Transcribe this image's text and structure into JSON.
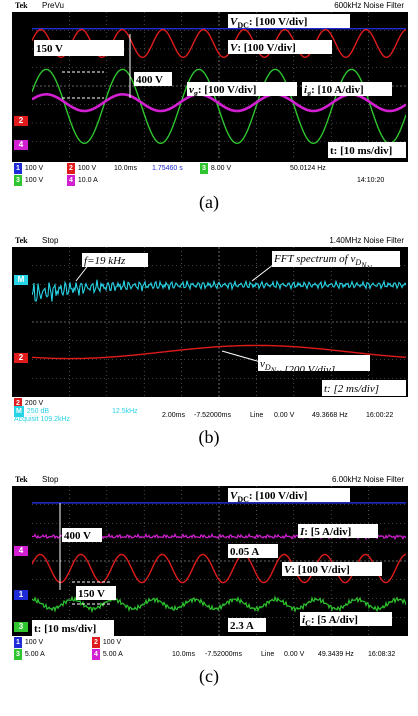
{
  "colors": {
    "ch1": "#1f2bd6",
    "ch2": "#e01b1b",
    "ch3": "#2ec52e",
    "ch4": "#d21fd2",
    "cyan": "#27d4e6",
    "grid": "#7a7a7a"
  },
  "panels": [
    {
      "caption": "(a)",
      "header": {
        "brand": "Tek",
        "state": "PreVu",
        "filter": "600kHz  Noise Filter"
      },
      "annotations": {
        "vdc": "V",
        "vdc_sub": "DC",
        "vdc_scale": ": [100 V/div]",
        "v": "V",
        "v_scale": ": [100 V/div]",
        "vg": "v",
        "vg_sub": "g",
        "vg_scale": ": [100 V/div]",
        "ig": "i",
        "ig_sub": "g",
        "ig_scale": ": [10 A/div]",
        "amp1": "150 V",
        "amp2": "400 V",
        "time": "t: [10 ms/div]"
      },
      "status": {
        "ch1": "100 V",
        "ch2": "100 V",
        "ch3": "100 V",
        "ch4": "10.0 A",
        "timebase": "10.0ms",
        "delay": "1.75460 s",
        "trig": "8.00 V",
        "freq": "50.0124 Hz",
        "clock": "14:10:20"
      },
      "chart_data": {
        "type": "line",
        "xlabel": "t",
        "x_unit": "ms/div",
        "series": [
          {
            "name": "V_DC",
            "level_div": 3.1,
            "shape": "dc"
          },
          {
            "name": "V",
            "offset_div": 2.3,
            "amp_div": 0.75,
            "period_ms": 11.2,
            "shape": "sine"
          },
          {
            "name": "v_g",
            "offset_div": -1.1,
            "amp_div": 2.0,
            "period_ms": 20,
            "shape": "sine"
          },
          {
            "name": "i_g",
            "offset_div": -0.9,
            "amp_div": 0.45,
            "period_ms": 20,
            "shape": "sine"
          }
        ],
        "amplitude_labels": [
          "150 V",
          "400 V"
        ]
      }
    },
    {
      "caption": "(b)",
      "header": {
        "brand": "Tek",
        "state": "Stop",
        "filter": "1.40MHz  Noise Filter"
      },
      "annotations": {
        "freq": "f",
        "freq_val": "=19 kHz",
        "fft": "FFT spectrum of v",
        "fft_sub": "D",
        "fft_sub2": "N",
        "fft_sub3": "N",
        "vd": "v",
        "vd_sub": "D",
        "vd_sub2": "N",
        "vd_sub3": "N",
        "vd_scale": " [200 V/div]",
        "time": "t: [2 ms/div]"
      },
      "status": {
        "ch2": "200 V",
        "math_a": "250 dB",
        "math_b": "12.5kHz",
        "extra": "Acquisit 109.2kHz",
        "timebase": "2.00ms",
        "delay": "-7.52000ms",
        "line": "Line",
        "trig": "0.00 V",
        "freq": "49.3668 Hz",
        "clock": "16:00:22"
      },
      "chart_data": {
        "type": "line",
        "xlabel": "t",
        "x_unit": "ms/div",
        "series": [
          {
            "name": "FFT spectrum of v_DN",
            "shape": "spectrum",
            "peak_khz": 19
          },
          {
            "name": "v_DN",
            "offset_div": -1.6,
            "amp_div": 0.35,
            "shape": "sine"
          }
        ]
      }
    },
    {
      "caption": "(c)",
      "header": {
        "brand": "Tek",
        "state": "Stop",
        "filter": "6.00kHz  Noise Filter"
      },
      "annotations": {
        "vdc": "V",
        "vdc_sub": "DC",
        "vdc_scale": ": [100 V/div]",
        "i": "I",
        "i_scale": ": [5 A/div]",
        "v": "V",
        "v_scale": ": [100 V/div]",
        "ic": "i",
        "ic_sub": "C",
        "ic_scale": ": [5 A/div]",
        "amp1": "400 V",
        "amp2": "150 V",
        "ripple_i": "0.05 A",
        "ripple_c": "2.3 A",
        "time": "t: [10 ms/div]"
      },
      "status": {
        "ch1": "100 V",
        "ch2": "100 V",
        "ch3": "5.00 A",
        "ch4": "5.00 A",
        "timebase": "10.0ms",
        "delay": "-7.52000ms",
        "line": "Line",
        "trig": "0.00 V",
        "freq": "49.3439 Hz",
        "clock": "16:08:32"
      },
      "chart_data": {
        "type": "line",
        "xlabel": "t",
        "x_unit": "ms/div",
        "series": [
          {
            "name": "V_DC",
            "level_div": 3.1,
            "shape": "dc"
          },
          {
            "name": "I",
            "level_div": 1.3,
            "shape": "dc"
          },
          {
            "name": "V",
            "offset_div": -0.4,
            "amp_div": 0.75,
            "shape": "sine"
          },
          {
            "name": "i_C",
            "offset_div": -2.3,
            "amp_div": 0.25,
            "shape": "ripple"
          }
        ],
        "amplitude_labels": [
          "400 V",
          "150 V",
          "0.05 A",
          "2.3 A"
        ]
      }
    }
  ]
}
